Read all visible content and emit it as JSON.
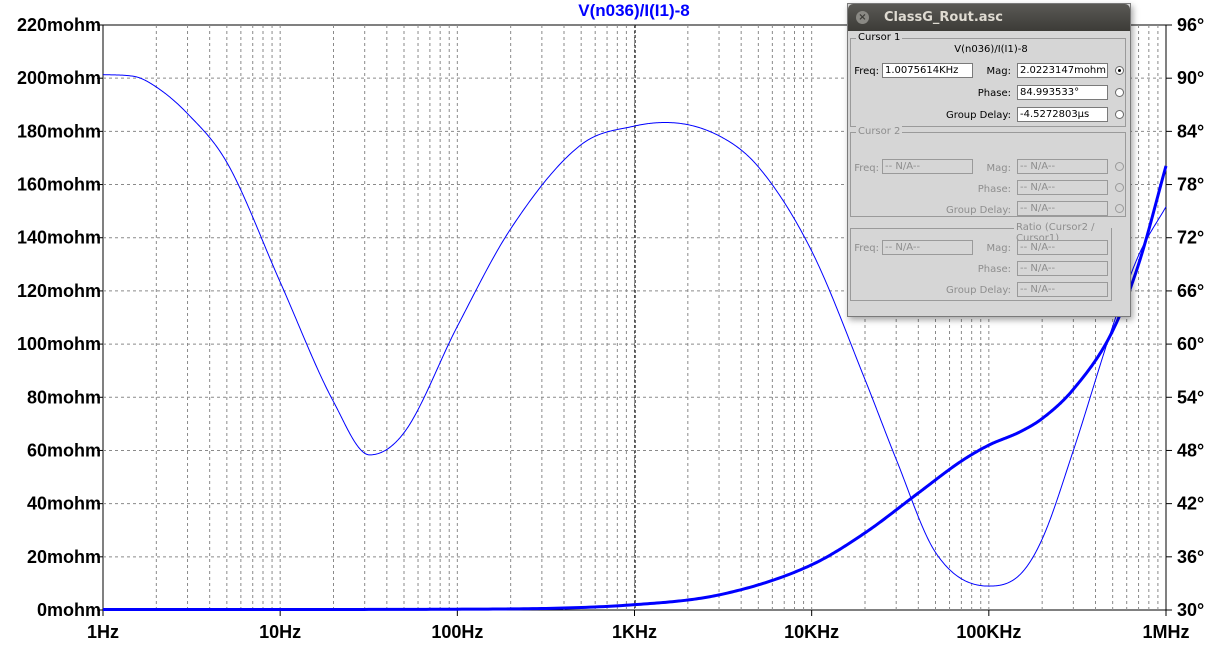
{
  "chart_data": {
    "type": "line",
    "title": "V(n036)/I(I1)-8",
    "x_scale": "log",
    "xlim": [
      1,
      1000000
    ],
    "x_ticks": [
      1,
      10,
      100,
      1000,
      10000,
      100000,
      1000000
    ],
    "x_tick_labels": [
      "1Hz",
      "10Hz",
      "100Hz",
      "1KHz",
      "10KHz",
      "100KHz",
      "1MHz"
    ],
    "ylim_left": [
      0,
      220
    ],
    "y_left_ticks": [
      0,
      20,
      40,
      60,
      80,
      100,
      120,
      140,
      160,
      180,
      200,
      220
    ],
    "y_left_tick_labels": [
      "0mohm",
      "20mohm",
      "40mohm",
      "60mohm",
      "80mohm",
      "100mohm",
      "120mohm",
      "140mohm",
      "160mohm",
      "180mohm",
      "200mohm",
      "220mohm"
    ],
    "ylim_right": [
      30,
      96
    ],
    "y_right_ticks": [
      30,
      36,
      42,
      48,
      54,
      60,
      66,
      72,
      78,
      84,
      90,
      96
    ],
    "y_right_tick_labels": [
      "30°",
      "36°",
      "42°",
      "48°",
      "54°",
      "60°",
      "66°",
      "72°",
      "78°",
      "84°",
      "90°",
      "96°"
    ],
    "grid": true,
    "cursor_x": 1007.5614,
    "series": [
      {
        "role": "magnitude",
        "axis": "left",
        "color": "#0000ff",
        "x": [
          1,
          10,
          100,
          1000,
          3160,
          10000,
          20000,
          40000,
          70000,
          100000,
          150000,
          200000,
          300000,
          500000,
          700000,
          1000000
        ],
        "y": [
          0.2,
          0.2,
          0.3,
          2,
          6,
          17,
          29,
          44,
          56,
          62,
          67,
          72,
          83,
          105,
          130,
          167
        ]
      },
      {
        "role": "phase",
        "axis": "right",
        "color": "#0000ff",
        "x": [
          1,
          1.5,
          2,
          3,
          5,
          10,
          20,
          32,
          50,
          100,
          200,
          500,
          1000,
          1500,
          3000,
          5000,
          10000,
          20000,
          30000,
          50000,
          100000,
          150000,
          200000,
          300000,
          500000,
          700000,
          1000000
        ],
        "y": [
          90.4,
          90.2,
          89,
          86,
          80.5,
          67,
          53.5,
          47.5,
          50,
          62,
          73,
          82.5,
          84.6,
          85,
          83.5,
          80,
          70.5,
          56,
          47,
          36.5,
          32.7,
          34,
          38,
          48,
          62,
          70,
          75.5
        ]
      }
    ]
  },
  "dialog": {
    "title": "ClassG_Rout.asc",
    "cursor1": {
      "legend": "Cursor 1",
      "trace": "V(n036)/I(I1)-8",
      "freq_label": "Freq:",
      "freq": "1.0075614KHz",
      "mag_label": "Mag:",
      "mag": "2.0223147mohm",
      "phase_label": "Phase:",
      "phase": "84.993533°",
      "gd_label": "Group Delay:",
      "gd": "-4.5272803µs"
    },
    "cursor2": {
      "legend": "Cursor 2",
      "freq_label": "Freq:",
      "freq": "-- N/A--",
      "mag_label": "Mag:",
      "mag": "-- N/A--",
      "phase_label": "Phase:",
      "phase": "-- N/A--",
      "gd_label": "Group Delay:",
      "gd": "-- N/A--"
    },
    "ratio": {
      "legend": "Ratio (Cursor2 / Cursor1)",
      "freq_label": "Freq:",
      "freq": "-- N/A--",
      "mag_label": "Mag:",
      "mag": "-- N/A--",
      "phase_label": "Phase:",
      "phase": "-- N/A--",
      "gd_label": "Group Delay:",
      "gd": "-- N/A--"
    }
  }
}
